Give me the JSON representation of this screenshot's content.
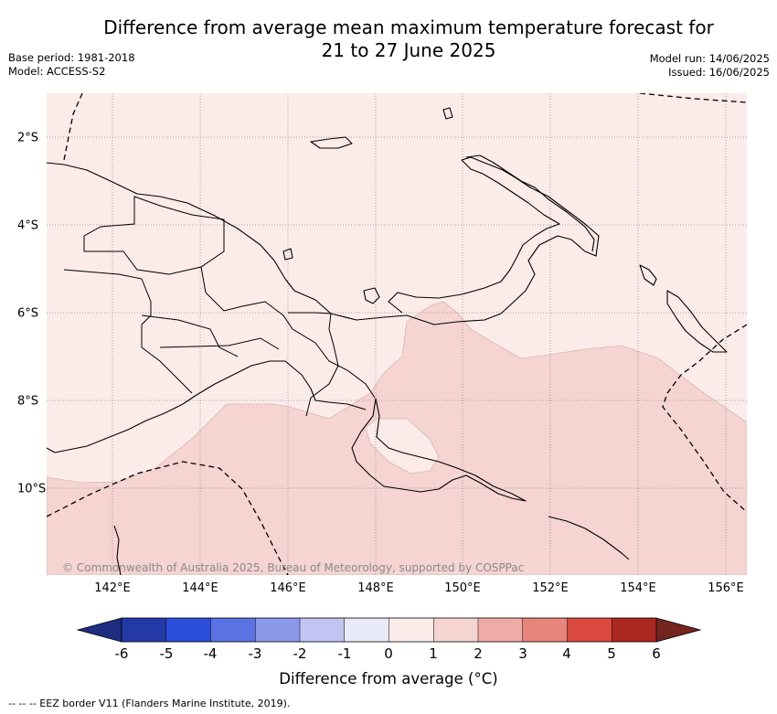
{
  "title_line1": "Difference from average mean maximum temperature forecast for",
  "title_line2": "21 to 27 June 2025",
  "base_period": "Base period: 1981-2018",
  "model": "Model: ACCESS-S2",
  "model_run": "Model run: 14/06/2025",
  "issued": "Issued: 16/06/2025",
  "copyright": "© Commonwealth of Australia 2025, Bureau of Meteorology, supported by COSPPac",
  "footnote": "-- -- -- EEZ border V11 (Flanders Marine Institute, 2019).",
  "map": {
    "longitude_ticks": [
      "142°E",
      "144°E",
      "146°E",
      "148°E",
      "150°E",
      "152°E",
      "154°E",
      "156°E"
    ],
    "latitude_ticks": [
      "2°S",
      "4°S",
      "6°S",
      "8°S",
      "10°S"
    ],
    "background_anomaly_category": "0 to 1",
    "warmer_region_category": "1 to 2",
    "colors": {
      "anomaly_0_to_1": "#fbebe9",
      "anomaly_1_to_2": "#f5d4d2",
      "coastline": "#000000",
      "graticule": "#888888"
    }
  },
  "colorbar": {
    "title": "Difference from average (°C)",
    "labels": [
      "-6",
      "-5",
      "-4",
      "-3",
      "-2",
      "-1",
      "0",
      "1",
      "2",
      "3",
      "4",
      "5",
      "6"
    ],
    "under_color": "#1f2d80",
    "over_color": "#742520",
    "colors": [
      "#2439a8",
      "#2d4ddb",
      "#5a72e4",
      "#8a98ea",
      "#c0c5f1",
      "#e8eaf8",
      "#fbebe9",
      "#f5d4d2",
      "#efaba6",
      "#e7847c",
      "#da4a3e",
      "#ab2821"
    ]
  }
}
